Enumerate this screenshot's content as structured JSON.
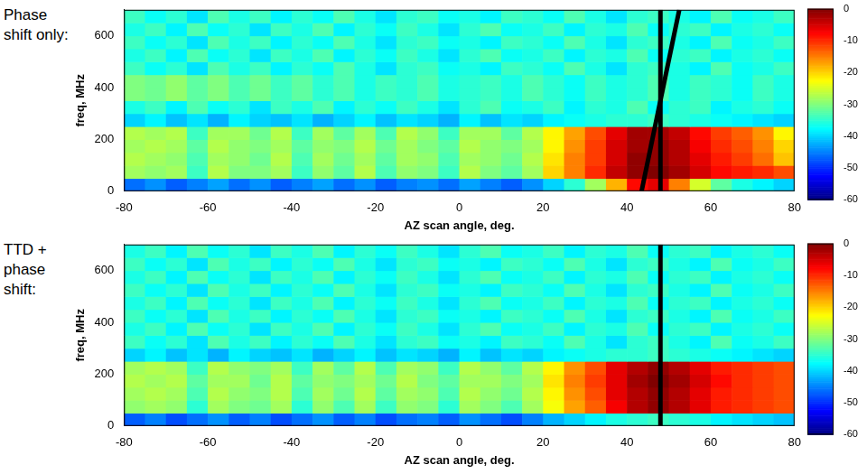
{
  "chart_data": [
    {
      "type": "heatmap",
      "title": "Phase shift only:",
      "x_label": "AZ scan angle, deg.",
      "y_label": "freq, MHz",
      "xlim": [
        -80,
        80
      ],
      "xticks": [
        -80,
        -60,
        -40,
        -20,
        0,
        20,
        40,
        60,
        80
      ],
      "ylim": [
        0,
        700
      ],
      "yticks": [
        0,
        200,
        400,
        600
      ],
      "grid": false,
      "cells": {
        "x_bins": [
          -80,
          -75,
          -70,
          -65,
          -60,
          -55,
          -50,
          -45,
          -40,
          -35,
          -30,
          -25,
          -20,
          -15,
          -10,
          -5,
          0,
          5,
          10,
          15,
          20,
          25,
          30,
          35,
          40,
          45,
          50,
          55,
          60,
          65,
          70,
          75,
          80
        ],
        "y_bins": [
          0,
          50,
          100,
          150,
          200,
          250,
          300,
          350,
          400,
          450,
          500,
          550,
          600,
          650,
          700
        ],
        "values": [
          [
            -46,
            -44,
            -47,
            -45,
            -43,
            -46,
            -44,
            -47,
            -45,
            -43,
            -46,
            -44,
            -47,
            -45,
            -44,
            -46,
            -43,
            -45,
            -47,
            -44,
            -40,
            -35,
            -28,
            -18,
            -8,
            -6,
            -15,
            -25,
            -32,
            -36,
            -38,
            -40
          ],
          [
            -28,
            -29,
            -28,
            -34,
            -27,
            -30,
            -30,
            -28,
            -34,
            -29,
            -32,
            -27,
            -33,
            -29,
            -30,
            -34,
            -27,
            -30,
            -32,
            -28,
            -20,
            -15,
            -10,
            -4,
            -1,
            0,
            -2,
            -5,
            -8,
            -9,
            -10,
            -12
          ],
          [
            -27,
            -28,
            -29,
            -33,
            -28,
            -29,
            -31,
            -27,
            -33,
            -28,
            -31,
            -28,
            -32,
            -28,
            -29,
            -33,
            -28,
            -29,
            -31,
            -27,
            -21,
            -15,
            -11,
            -5,
            -1,
            -1,
            -3,
            -6,
            -9,
            -11,
            -14,
            -19
          ],
          [
            -28,
            -27,
            -28,
            -32,
            -27,
            -29,
            -30,
            -28,
            -32,
            -29,
            -30,
            -27,
            -31,
            -28,
            -30,
            -32,
            -27,
            -29,
            -30,
            -28,
            -22,
            -16,
            -11,
            -5,
            -2,
            -1,
            -3,
            -7,
            -10,
            -12,
            -15,
            -20
          ],
          [
            -27,
            -28,
            -27,
            -34,
            -28,
            -28,
            -31,
            -27,
            -34,
            -28,
            -32,
            -28,
            -33,
            -27,
            -29,
            -34,
            -28,
            -28,
            -32,
            -27,
            -22,
            -17,
            -12,
            -6,
            -2,
            -2,
            -4,
            -8,
            -11,
            -13,
            -16,
            -22
          ],
          [
            -40,
            -38,
            -41,
            -39,
            -42,
            -38,
            -40,
            -41,
            -39,
            -42,
            -40,
            -38,
            -41,
            -39,
            -40,
            -42,
            -38,
            -41,
            -39,
            -40,
            -38,
            -37,
            -36,
            -35,
            -35,
            -34,
            -35,
            -36,
            -37,
            -38,
            -39,
            -40
          ],
          [
            -36,
            -34,
            -38,
            -33,
            -37,
            -35,
            -39,
            -34,
            -36,
            -33,
            -38,
            -35,
            -37,
            -34,
            -36,
            -39,
            -35,
            -33,
            -37,
            -36,
            -34,
            -38,
            -35,
            -36,
            -33,
            -37,
            -35,
            -34,
            -38,
            -36,
            -35,
            -37
          ],
          [
            -30,
            -31,
            -29,
            -32,
            -30,
            -33,
            -31,
            -34,
            -32,
            -35,
            -33,
            -36,
            -34,
            -35,
            -33,
            -36,
            -35,
            -34,
            -36,
            -33,
            -35,
            -37,
            -34,
            -36,
            -35,
            -33,
            -36,
            -34,
            -35,
            -37,
            -34,
            -36
          ],
          [
            -30,
            -31,
            -29,
            -32,
            -30,
            -33,
            -31,
            -34,
            -32,
            -35,
            -33,
            -36,
            -34,
            -35,
            -33,
            -36,
            -35,
            -34,
            -36,
            -33,
            -35,
            -37,
            -34,
            -36,
            -35,
            -33,
            -36,
            -34,
            -35,
            -37,
            -34,
            -36
          ],
          [
            -34,
            -37,
            -35,
            -39,
            -33,
            -36,
            -34,
            -38,
            -35,
            -37,
            -33,
            -36,
            -39,
            -35,
            -34,
            -37,
            -36,
            -38,
            -34,
            -35,
            -37,
            -33,
            -36,
            -39,
            -35,
            -34,
            -36,
            -38,
            -33,
            -37,
            -36,
            -34
          ],
          [
            -36,
            -34,
            -38,
            -33,
            -37,
            -35,
            -39,
            -34,
            -36,
            -33,
            -38,
            -35,
            -37,
            -34,
            -36,
            -39,
            -35,
            -33,
            -37,
            -36,
            -34,
            -38,
            -35,
            -36,
            -33,
            -37,
            -35,
            -34,
            -38,
            -36,
            -35,
            -37
          ],
          [
            -34,
            -37,
            -35,
            -39,
            -33,
            -36,
            -34,
            -38,
            -35,
            -37,
            -33,
            -36,
            -39,
            -35,
            -34,
            -37,
            -36,
            -38,
            -34,
            -35,
            -37,
            -33,
            -36,
            -39,
            -35,
            -34,
            -36,
            -38,
            -33,
            -37,
            -36,
            -34
          ],
          [
            -36,
            -34,
            -38,
            -33,
            -37,
            -35,
            -39,
            -34,
            -36,
            -33,
            -38,
            -35,
            -37,
            -34,
            -36,
            -39,
            -35,
            -33,
            -37,
            -36,
            -34,
            -38,
            -35,
            -36,
            -33,
            -37,
            -35,
            -34,
            -38,
            -36,
            -35,
            -37
          ],
          [
            -34,
            -37,
            -35,
            -39,
            -33,
            -36,
            -34,
            -38,
            -35,
            -37,
            -33,
            -36,
            -39,
            -35,
            -34,
            -37,
            -36,
            -38,
            -34,
            -35,
            -37,
            -33,
            -36,
            -39,
            -35,
            -34,
            -36,
            -38,
            -33,
            -37,
            -36,
            -34
          ]
        ]
      },
      "colorbar": {
        "range": [
          -60,
          0
        ],
        "ticks": [
          0,
          -10,
          -20,
          -30,
          -40,
          -50,
          -60
        ]
      },
      "lines": [
        {
          "x": [
            48,
            48
          ],
          "y": [
            0,
            700
          ],
          "color": "#000000"
        },
        {
          "x": [
            43.5,
            52.5
          ],
          "y": [
            0,
            700
          ],
          "color": "#000000"
        }
      ]
    },
    {
      "type": "heatmap",
      "title": "TTD + phase shift:",
      "x_label": "AZ scan angle, deg.",
      "y_label": "freq, MHz",
      "xlim": [
        -80,
        80
      ],
      "xticks": [
        -80,
        -60,
        -40,
        -20,
        0,
        20,
        40,
        60,
        80
      ],
      "ylim": [
        0,
        700
      ],
      "yticks": [
        0,
        200,
        400,
        600
      ],
      "grid": false,
      "cells": {
        "x_bins": [
          -80,
          -75,
          -70,
          -65,
          -60,
          -55,
          -50,
          -45,
          -40,
          -35,
          -30,
          -25,
          -20,
          -15,
          -10,
          -5,
          0,
          5,
          10,
          15,
          20,
          25,
          30,
          35,
          40,
          45,
          50,
          55,
          60,
          65,
          70,
          75,
          80
        ],
        "y_bins": [
          0,
          50,
          100,
          150,
          200,
          250,
          300,
          350,
          400,
          450,
          500,
          550,
          600,
          650,
          700
        ],
        "values": [
          [
            -47,
            -45,
            -48,
            -46,
            -44,
            -47,
            -45,
            -48,
            -46,
            -44,
            -47,
            -45,
            -48,
            -46,
            -45,
            -47,
            -44,
            -46,
            -48,
            -45,
            -42,
            -40,
            -38,
            -36,
            -35,
            -34,
            -35,
            -36,
            -38,
            -39,
            -40,
            -41
          ],
          [
            -29,
            -28,
            -29,
            -35,
            -28,
            -30,
            -31,
            -28,
            -35,
            -29,
            -33,
            -28,
            -34,
            -29,
            -30,
            -35,
            -28,
            -30,
            -33,
            -28,
            -23,
            -17,
            -13,
            -7,
            -3,
            -1,
            -3,
            -6,
            -9,
            -10,
            -11,
            -12
          ],
          [
            -28,
            -27,
            -28,
            -33,
            -27,
            -29,
            -30,
            -27,
            -33,
            -28,
            -31,
            -27,
            -32,
            -28,
            -29,
            -33,
            -27,
            -29,
            -31,
            -27,
            -22,
            -16,
            -12,
            -6,
            -3,
            -1,
            -3,
            -6,
            -9,
            -10,
            -11,
            -12
          ],
          [
            -27,
            -28,
            -27,
            -32,
            -28,
            -28,
            -31,
            -27,
            -32,
            -29,
            -30,
            -28,
            -31,
            -27,
            -30,
            -32,
            -28,
            -28,
            -30,
            -28,
            -21,
            -15,
            -11,
            -6,
            -2,
            0,
            -2,
            -5,
            -8,
            -10,
            -11,
            -12
          ],
          [
            -28,
            -27,
            -28,
            -34,
            -27,
            -29,
            -30,
            -28,
            -34,
            -28,
            -32,
            -27,
            -33,
            -28,
            -29,
            -34,
            -27,
            -29,
            -32,
            -27,
            -22,
            -16,
            -12,
            -6,
            -3,
            -1,
            -3,
            -6,
            -9,
            -10,
            -11,
            -12
          ],
          [
            -40,
            -38,
            -41,
            -39,
            -42,
            -38,
            -40,
            -41,
            -39,
            -42,
            -40,
            -38,
            -41,
            -39,
            -40,
            -42,
            -38,
            -41,
            -39,
            -40,
            -38,
            -37,
            -36,
            -35,
            -35,
            -34,
            -35,
            -36,
            -37,
            -38,
            -39,
            -40
          ],
          [
            -34,
            -37,
            -35,
            -39,
            -33,
            -36,
            -34,
            -38,
            -35,
            -37,
            -33,
            -36,
            -39,
            -35,
            -34,
            -37,
            -36,
            -38,
            -34,
            -35,
            -37,
            -33,
            -36,
            -39,
            -35,
            -34,
            -36,
            -38,
            -33,
            -37,
            -36,
            -34
          ],
          [
            -36,
            -34,
            -38,
            -33,
            -37,
            -35,
            -39,
            -34,
            -36,
            -33,
            -38,
            -35,
            -37,
            -34,
            -36,
            -39,
            -35,
            -33,
            -37,
            -36,
            -34,
            -38,
            -35,
            -36,
            -33,
            -37,
            -35,
            -34,
            -38,
            -36,
            -35,
            -37
          ],
          [
            -34,
            -37,
            -35,
            -39,
            -33,
            -36,
            -34,
            -38,
            -35,
            -37,
            -33,
            -36,
            -39,
            -35,
            -34,
            -37,
            -36,
            -38,
            -34,
            -35,
            -37,
            -33,
            -36,
            -39,
            -35,
            -34,
            -36,
            -38,
            -33,
            -37,
            -36,
            -34
          ],
          [
            -36,
            -34,
            -38,
            -33,
            -37,
            -35,
            -39,
            -34,
            -36,
            -33,
            -38,
            -35,
            -37,
            -34,
            -36,
            -39,
            -35,
            -33,
            -37,
            -36,
            -34,
            -38,
            -35,
            -36,
            -33,
            -37,
            -35,
            -34,
            -38,
            -36,
            -35,
            -37
          ],
          [
            -34,
            -37,
            -35,
            -39,
            -33,
            -36,
            -34,
            -38,
            -35,
            -37,
            -33,
            -36,
            -39,
            -35,
            -34,
            -37,
            -36,
            -38,
            -34,
            -35,
            -37,
            -33,
            -36,
            -39,
            -35,
            -34,
            -36,
            -38,
            -33,
            -37,
            -36,
            -34
          ],
          [
            -36,
            -34,
            -38,
            -33,
            -37,
            -35,
            -39,
            -34,
            -36,
            -33,
            -38,
            -35,
            -37,
            -34,
            -36,
            -39,
            -35,
            -33,
            -37,
            -36,
            -34,
            -38,
            -35,
            -36,
            -33,
            -37,
            -35,
            -34,
            -38,
            -36,
            -35,
            -37
          ],
          [
            -34,
            -37,
            -35,
            -39,
            -33,
            -36,
            -34,
            -38,
            -35,
            -37,
            -33,
            -36,
            -39,
            -35,
            -34,
            -37,
            -36,
            -38,
            -34,
            -35,
            -37,
            -33,
            -36,
            -39,
            -35,
            -34,
            -36,
            -38,
            -33,
            -37,
            -36,
            -34
          ],
          [
            -36,
            -34,
            -38,
            -33,
            -37,
            -35,
            -39,
            -34,
            -36,
            -33,
            -38,
            -35,
            -37,
            -34,
            -36,
            -39,
            -35,
            -33,
            -37,
            -36,
            -34,
            -38,
            -35,
            -36,
            -33,
            -37,
            -35,
            -34,
            -38,
            -36,
            -35,
            -37
          ]
        ]
      },
      "colorbar": {
        "range": [
          -60,
          0
        ],
        "ticks": [
          0,
          -10,
          -20,
          -30,
          -40,
          -50,
          -60
        ]
      },
      "lines": [
        {
          "x": [
            48,
            48
          ],
          "y": [
            0,
            700
          ],
          "color": "#000000"
        }
      ]
    }
  ]
}
